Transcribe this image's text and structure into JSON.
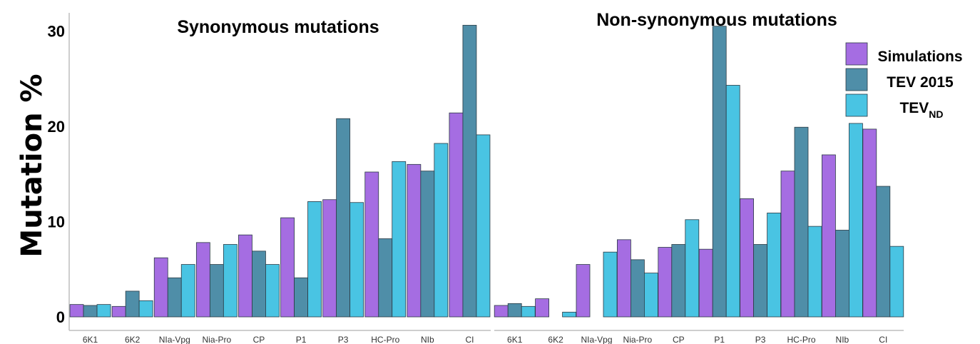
{
  "colors": {
    "Simulations": "#a56de2",
    "TEV 2015": "#4f8ea8",
    "TEV_ND": "#49c4e3"
  },
  "ylabel": "Mutation %",
  "legend": [
    {
      "label": "Simulations",
      "sub": ""
    },
    {
      "label": "TEV 2015",
      "sub": ""
    },
    {
      "label": "TEV",
      "sub": "ND"
    }
  ],
  "chart_data": [
    {
      "type": "bar",
      "title": "Synonymous mutations",
      "ylabel": "Mutation %",
      "ylim": [
        0,
        31
      ],
      "yticks": [
        0,
        10,
        20,
        30
      ],
      "categories": [
        "6K1",
        "6K2",
        "NIa-Vpg",
        "Nia-Pro",
        "CP",
        "P1",
        "P3",
        "HC-Pro",
        "NIb",
        "CI"
      ],
      "series": [
        {
          "name": "Simulations",
          "values": [
            1.3,
            1.1,
            6.2,
            7.8,
            8.6,
            10.4,
            12.3,
            15.2,
            16.0,
            21.4
          ]
        },
        {
          "name": "TEV 2015",
          "values": [
            1.2,
            2.7,
            4.1,
            5.5,
            6.9,
            4.1,
            20.8,
            8.2,
            15.3,
            30.6
          ]
        },
        {
          "name": "TEV_ND",
          "values": [
            1.3,
            1.7,
            5.5,
            7.6,
            5.5,
            12.1,
            12.0,
            16.3,
            18.2,
            19.1
          ]
        }
      ]
    },
    {
      "type": "bar",
      "title": "Non-synonymous mutations",
      "ylim": [
        0,
        31
      ],
      "categories": [
        "6K1",
        "6K2",
        "NIa-Vpg",
        "Nia-Pro",
        "CP",
        "P1",
        "P3",
        "HC-Pro",
        "NIb",
        "CI"
      ],
      "series": [
        {
          "name": "Simulations",
          "values": [
            1.2,
            1.9,
            5.5,
            8.1,
            7.3,
            7.1,
            12.4,
            15.3,
            17.0,
            19.7
          ]
        },
        {
          "name": "TEV 2015",
          "values": [
            1.4,
            0.0,
            0.0,
            6.0,
            7.6,
            30.5,
            7.6,
            19.9,
            9.1,
            13.7
          ]
        },
        {
          "name": "TEV_ND",
          "values": [
            1.1,
            0.5,
            6.8,
            4.6,
            10.2,
            24.3,
            10.9,
            9.5,
            20.3,
            7.4
          ]
        }
      ]
    }
  ]
}
